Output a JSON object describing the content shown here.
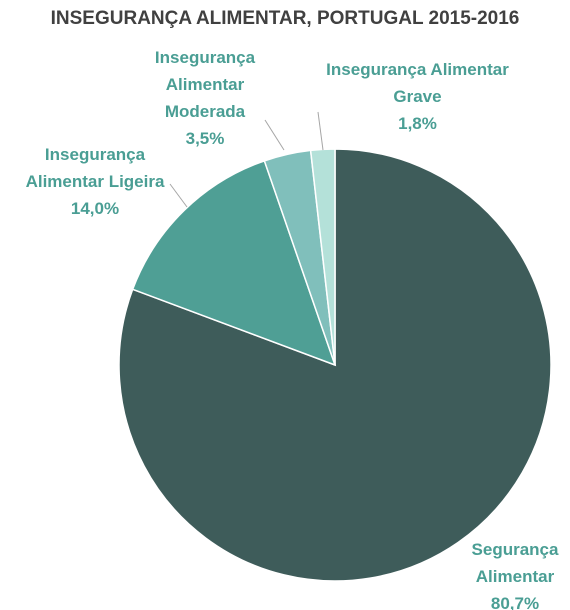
{
  "chart_data": {
    "type": "pie",
    "title": "INSEGURANÇA ALIMENTAR, PORTUGAL 2015-2016",
    "categories": [
      "Segurança Alimentar",
      "Insegurança Alimentar Ligeira",
      "Insegurança Alimentar Moderada",
      "Insegurança Alimentar Grave"
    ],
    "values": [
      80.7,
      14.0,
      3.5,
      1.8
    ],
    "value_labels": [
      "80,7%",
      "14,0%",
      "3,5%",
      "1,8%"
    ],
    "colors": [
      "#3e5c5a",
      "#4f9f95",
      "#80bfbb",
      "#b4e1d9"
    ]
  }
}
